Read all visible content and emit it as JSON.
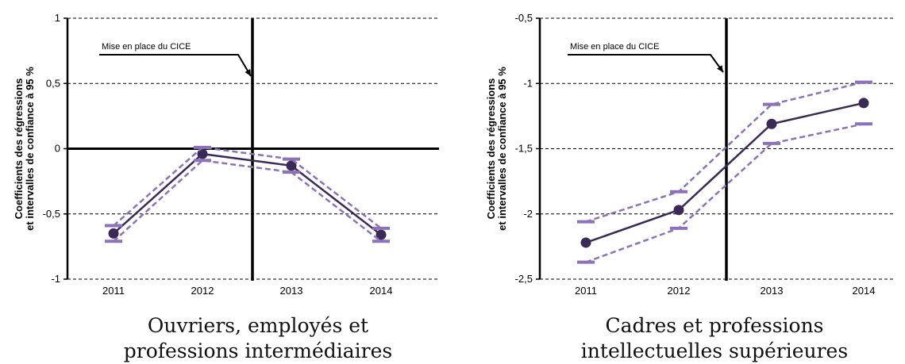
{
  "chart_data": [
    {
      "type": "line",
      "categories": [
        "2011",
        "2012",
        "2013",
        "2014"
      ],
      "yticks": [
        "1",
        "0,5",
        "0",
        "-0,5",
        "-1"
      ],
      "ytick_values": [
        1,
        0.5,
        0,
        -0.5,
        -1
      ],
      "ylim": [
        -1,
        1
      ],
      "ylabel_lines": [
        "Coefficients des régressions",
        "et intervalles de confiance à 95 %"
      ],
      "annotation": "Mise en place du CICE",
      "event_between": [
        "2012",
        "2013"
      ],
      "caption_lines": [
        "Ouvriers, employés et",
        "professions intermédiaires"
      ],
      "grid": true,
      "series": [
        {
          "role": "estimate",
          "values": [
            -0.65,
            -0.04,
            -0.13,
            -0.66
          ],
          "color": "#3b2a56"
        },
        {
          "role": "upper",
          "values": [
            -0.59,
            0.01,
            -0.08,
            -0.61
          ],
          "color": "#8d72b8"
        },
        {
          "role": "lower",
          "values": [
            -0.71,
            -0.09,
            -0.18,
            -0.71
          ],
          "color": "#8d72b8"
        }
      ]
    },
    {
      "type": "line",
      "categories": [
        "2011",
        "2012",
        "2013",
        "2014"
      ],
      "yticks": [
        "-0,5",
        "-1",
        "-1,5",
        "-2",
        "-2,5"
      ],
      "ytick_values": [
        -0.5,
        -1,
        -1.5,
        -2,
        -2.5
      ],
      "ylim": [
        -2.5,
        -0.5
      ],
      "ylabel_lines": [
        "Coefficients des régressions",
        "et intervalles de confiance à 95 %"
      ],
      "annotation": "Mise en place du CICE",
      "event_between": [
        "2012",
        "2013"
      ],
      "caption_lines": [
        "Cadres et professions",
        "intellectuelles supérieures"
      ],
      "grid": true,
      "series": [
        {
          "role": "estimate",
          "values": [
            -2.22,
            -1.97,
            -1.31,
            -1.15
          ],
          "color": "#3b2a56"
        },
        {
          "role": "upper",
          "values": [
            -2.06,
            -1.83,
            -1.16,
            -0.99
          ],
          "color": "#8d72b8"
        },
        {
          "role": "lower",
          "values": [
            -2.37,
            -2.11,
            -1.46,
            -1.31
          ],
          "color": "#8d72b8"
        }
      ]
    }
  ]
}
